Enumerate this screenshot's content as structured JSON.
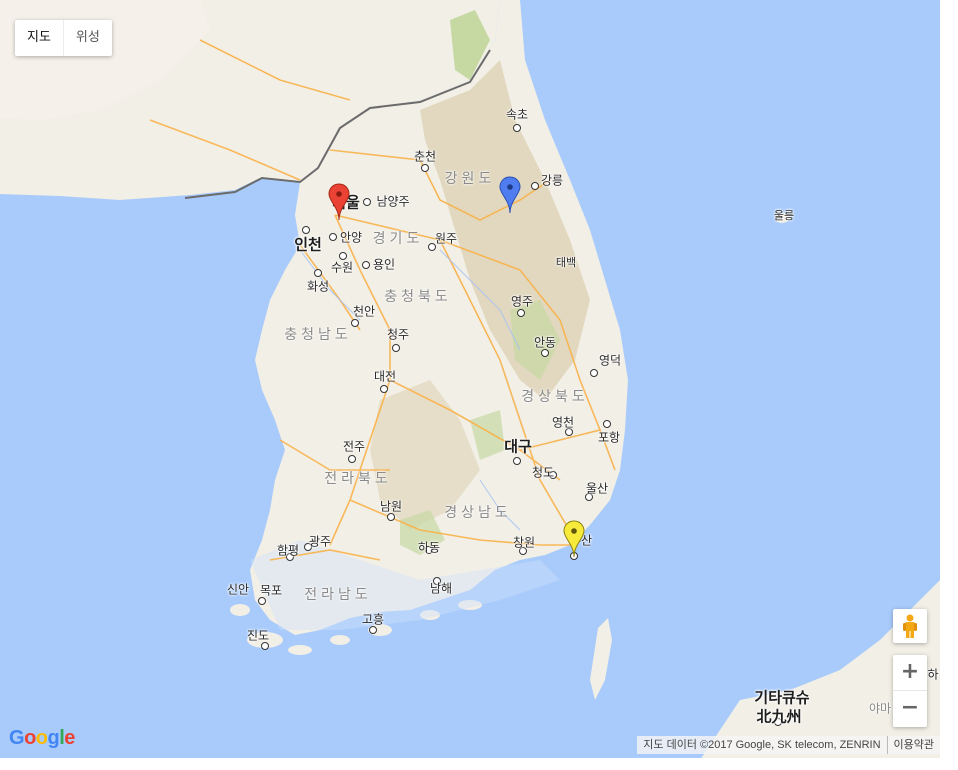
{
  "map_type": {
    "map_label": "지도",
    "satellite_label": "위성"
  },
  "regions": {
    "gangwon": "강원도",
    "gyeonggi": "경기도",
    "chungbuk": "충청북도",
    "chungnam": "충청남도",
    "gyeongbuk": "경상북도",
    "jeonbuk": "전라북도",
    "gyeongnam": "경상남도",
    "jeonnam": "전라남도"
  },
  "cities": {
    "sokcho": "속초",
    "chuncheon": "춘천",
    "gangneung": "강릉",
    "seoul": "서울",
    "namyangju": "남양주",
    "ulleung": "울릉",
    "incheon": "인천",
    "anyang": "안양",
    "wonju": "원주",
    "suwon": "수원",
    "yongin": "용인",
    "taebaek": "태백",
    "hwaseong": "화성",
    "yeongju": "영주",
    "cheonan": "천안",
    "cheongju": "청주",
    "andong": "안동",
    "yeongdeok": "영덕",
    "daejeon": "대전",
    "yeongcheon": "영천",
    "pohang": "포항",
    "jeonju": "전주",
    "daegu": "대구",
    "cheongdo": "청도",
    "ulsan": "울산",
    "namwon": "남원",
    "gwangju": "광주",
    "hampyeong": "함평",
    "hadong": "하동",
    "changwon": "창원",
    "busan": "부산",
    "sinan": "신안",
    "mokpo": "목포",
    "namhae": "남해",
    "goheung": "고흥",
    "jindo": "진도",
    "kitakyushu_kana": "기타큐슈",
    "kitakyushu_kanji": "北九州",
    "yamaguchi": "야마",
    "edge_partial": "하"
  },
  "markers": [
    {
      "name": "red-marker",
      "color": "#ea4335"
    },
    {
      "name": "blue-marker",
      "color": "#4f7df0"
    },
    {
      "name": "yellow-marker",
      "color": "#f7ea3a"
    }
  ],
  "controls": {
    "zoom_in": "+",
    "zoom_out": "−",
    "pegman": "pegman-icon"
  },
  "logo": {
    "text": "Google",
    "letters": [
      "G",
      "o",
      "o",
      "g",
      "l",
      "e"
    ],
    "colors": [
      "#4285f4",
      "#ea4335",
      "#fbbc05",
      "#4285f4",
      "#34a853",
      "#ea4335"
    ]
  },
  "attribution": {
    "data": "지도 데이터 ©2017 Google, SK telecom, ZENRIN",
    "terms": "이용약관"
  },
  "colors": {
    "sea": "#a9cbfb",
    "land": "#f2efe6",
    "mountain": "#d9cfb4",
    "forest": "#c6d9a3",
    "road": "#f9b24a",
    "border": "#6b6b6b"
  }
}
